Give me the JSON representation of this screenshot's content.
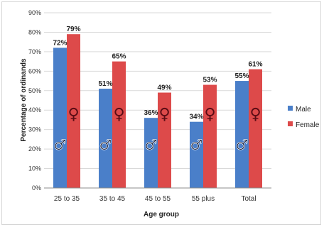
{
  "chart_data": {
    "type": "bar",
    "xlabel": "Age group",
    "ylabel": "Percentage of ordinands",
    "ylim": [
      0,
      90
    ],
    "yticks": [
      "0%",
      "10%",
      "20%",
      "30%",
      "40%",
      "50%",
      "60%",
      "70%",
      "80%",
      "90%"
    ],
    "categories": [
      "25 to 35",
      "35 to 45",
      "45 to 55",
      "55 plus",
      "Total"
    ],
    "series": [
      {
        "name": "Male",
        "color": "#4a7fc9",
        "values": [
          72,
          51,
          36,
          34,
          55
        ],
        "labels": [
          "72%",
          "51%",
          "36%",
          "34%",
          "55%"
        ],
        "symbol": "male-symbol-icon"
      },
      {
        "name": "Female",
        "color": "#dd4a4a",
        "values": [
          79,
          65,
          49,
          53,
          61
        ],
        "labels": [
          "79%",
          "65%",
          "49%",
          "53%",
          "61%"
        ],
        "symbol": "female-symbol-icon"
      }
    ],
    "grid": true,
    "legend": "right"
  }
}
